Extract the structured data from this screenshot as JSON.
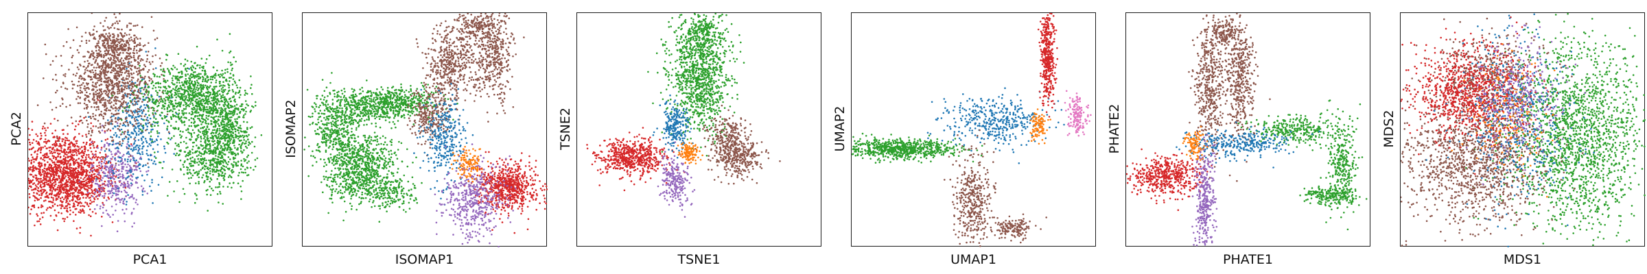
{
  "chart_data": [
    {
      "type": "scatter",
      "title": "",
      "xlabel": "PCA1",
      "ylabel": "PCA2",
      "grid": false,
      "xlim": [
        0,
        100
      ],
      "ylim": [
        0,
        100
      ],
      "series": [
        {
          "color": "#d62728",
          "clusters": [
            [
              12,
              32,
              10,
              9,
              1300
            ],
            [
              22,
              28,
              6,
              6,
              350
            ]
          ]
        },
        {
          "color": "#9467bd",
          "clusters": [
            [
              36,
              30,
              5,
              8,
              350
            ]
          ]
        },
        {
          "color": "#1f77b4",
          "clusters": [
            [
              44,
              50,
              6,
              12,
              380
            ]
          ]
        },
        {
          "color": "#8c564b",
          "clusters": [
            [
              34,
              70,
              9,
              10,
              1050
            ],
            [
              36,
              86,
              5,
              5,
              250
            ]
          ]
        },
        {
          "color": "#2ca02c",
          "clusters": [
            [
              62,
              63,
              9,
              7,
              500
            ],
            [
              78,
              58,
              6,
              10,
              450
            ],
            [
              74,
              38,
              7,
              8,
              450
            ],
            [
              68,
              68,
              5,
              6,
              250
            ],
            [
              82,
              48,
              5,
              8,
              300
            ]
          ]
        }
      ]
    },
    {
      "type": "scatter",
      "title": "",
      "xlabel": "ISOMAP1",
      "ylabel": "ISOMAP2",
      "grid": false,
      "xlim": [
        0,
        100
      ],
      "ylim": [
        0,
        100
      ],
      "series": [
        {
          "color": "#2ca02c",
          "clusters": [
            [
              26,
              60,
              10,
              4,
              500
            ],
            [
              14,
              48,
              5,
              7,
              400
            ],
            [
              22,
              30,
              6,
              6,
              450
            ],
            [
              36,
              24,
              5,
              4,
              200
            ],
            [
              42,
              62,
              8,
              3,
              300
            ],
            [
              28,
              38,
              6,
              5,
              250
            ]
          ]
        },
        {
          "color": "#8c564b",
          "clusters": [
            [
              60,
              78,
              5,
              8,
              450
            ],
            [
              78,
              82,
              4,
              10,
              450
            ],
            [
              70,
              95,
              4,
              3,
              150
            ],
            [
              52,
              56,
              4,
              6,
              250
            ]
          ]
        },
        {
          "color": "#1f77b4",
          "clusters": [
            [
              58,
              46,
              4,
              9,
              300
            ]
          ]
        },
        {
          "color": "#d62728",
          "clusters": [
            [
              84,
              26,
              6,
              5,
              700
            ]
          ]
        },
        {
          "color": "#9467bd",
          "clusters": [
            [
              70,
              20,
              6,
              8,
              450
            ]
          ]
        },
        {
          "color": "#ff7f0e",
          "clusters": [
            [
              68,
              36,
              3,
              4,
              120
            ]
          ]
        }
      ]
    },
    {
      "type": "scatter",
      "title": "",
      "xlabel": "TSNE1",
      "ylabel": "TSNE2",
      "grid": false,
      "xlim": [
        0,
        100
      ],
      "ylim": [
        0,
        100
      ],
      "series": [
        {
          "color": "#2ca02c",
          "clusters": [
            [
              50,
              74,
              6,
              12,
              1100
            ],
            [
              52,
              92,
              4,
              3,
              150
            ]
          ]
        },
        {
          "color": "#d62728",
          "clusters": [
            [
              22,
              38,
              7,
              4,
              600
            ]
          ]
        },
        {
          "color": "#8c564b",
          "clusters": [
            [
              62,
              46,
              4,
              5,
              250
            ],
            [
              66,
              38,
              5,
              4,
              300
            ]
          ]
        },
        {
          "color": "#1f77b4",
          "clusters": [
            [
              40,
              52,
              3,
              5,
              220
            ]
          ]
        },
        {
          "color": "#9467bd",
          "clusters": [
            [
              40,
              28,
              3,
              5,
              220
            ]
          ]
        },
        {
          "color": "#ff7f0e",
          "clusters": [
            [
              46,
              40,
              2,
              2,
              120
            ]
          ]
        }
      ]
    },
    {
      "type": "scatter",
      "title": "",
      "xlabel": "UMAP1",
      "ylabel": "UMAP2",
      "grid": false,
      "xlim": [
        0,
        100
      ],
      "ylim": [
        0,
        100
      ],
      "series": [
        {
          "color": "#2ca02c",
          "clusters": [
            [
              20,
              42,
              12,
              2,
              700
            ]
          ]
        },
        {
          "color": "#1f77b4",
          "clusters": [
            [
              58,
              54,
              10,
              5,
              400
            ]
          ]
        },
        {
          "color": "#d62728",
          "clusters": [
            [
              80,
              82,
              1.5,
              10,
              400
            ]
          ]
        },
        {
          "color": "#8c564b",
          "clusters": [
            [
              50,
              20,
              4,
              10,
              400
            ],
            [
              66,
              8,
              4,
              2,
              150
            ]
          ]
        },
        {
          "color": "#e377c2",
          "clusters": [
            [
              92,
              56,
              2,
              4,
              150
            ]
          ]
        },
        {
          "color": "#ff7f0e",
          "clusters": [
            [
              76,
              52,
              1.5,
              3,
              100
            ]
          ]
        }
      ]
    },
    {
      "type": "scatter",
      "title": "",
      "xlabel": "PHATE1",
      "ylabel": "PHATE2",
      "grid": false,
      "xlim": [
        0,
        100
      ],
      "ylim": [
        0,
        100
      ],
      "series": [
        {
          "color": "#8c564b",
          "clusters": [
            [
              34,
              70,
              3,
              14,
              450
            ],
            [
              46,
              72,
              3,
              14,
              450
            ],
            [
              40,
              92,
              3,
              3,
              150
            ]
          ]
        },
        {
          "color": "#2ca02c",
          "clusters": [
            [
              68,
              50,
              8,
              3,
              300
            ],
            [
              88,
              36,
              3,
              10,
              300
            ],
            [
              84,
              22,
              6,
              2,
              200
            ]
          ]
        },
        {
          "color": "#d62728",
          "clusters": [
            [
              16,
              30,
              7,
              4,
              500
            ]
          ]
        },
        {
          "color": "#1f77b4",
          "clusters": [
            [
              46,
              44,
              10,
              3,
              300
            ]
          ]
        },
        {
          "color": "#9467bd",
          "clusters": [
            [
              32,
              20,
              2,
              12,
              350
            ]
          ]
        },
        {
          "color": "#ff7f0e",
          "clusters": [
            [
              28,
              44,
              2,
              3,
              100
            ]
          ]
        }
      ]
    },
    {
      "type": "scatter",
      "title": "",
      "xlabel": "MDS1",
      "ylabel": "MDS2",
      "grid": false,
      "xlim": [
        0,
        100
      ],
      "ylim": [
        0,
        100
      ],
      "series": [
        {
          "color": "#2ca02c",
          "clusters": [
            [
              72,
              48,
              14,
              20,
              1800
            ]
          ]
        },
        {
          "color": "#8c564b",
          "clusters": [
            [
              30,
              38,
              14,
              14,
              1300
            ],
            [
              36,
              74,
              10,
              8,
              400
            ]
          ]
        },
        {
          "color": "#d62728",
          "clusters": [
            [
              28,
              66,
              12,
              10,
              1000
            ]
          ]
        },
        {
          "color": "#1f77b4",
          "clusters": [
            [
              48,
              56,
              10,
              20,
              450
            ]
          ]
        },
        {
          "color": "#9467bd",
          "clusters": [
            [
              48,
              62,
              8,
              12,
              350
            ]
          ]
        },
        {
          "color": "#ff7f0e",
          "clusters": [
            [
              44,
              54,
              8,
              12,
              150
            ]
          ]
        }
      ]
    }
  ]
}
